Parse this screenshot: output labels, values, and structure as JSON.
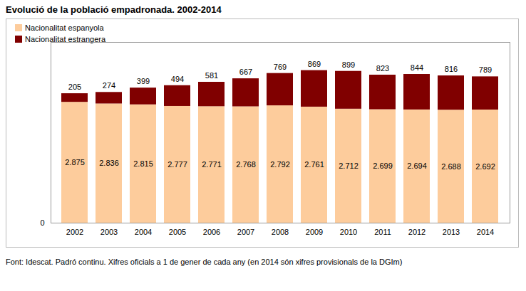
{
  "chart_data": {
    "type": "bar",
    "title": "Evolució de la població empadronada. 2002-2014",
    "caption": "Font: Idescat. Padró continu. Xifres oficials a 1 de gener de cada any (en 2014 són xifres provisionals de la DGIm)",
    "categories": [
      "2002",
      "2003",
      "2004",
      "2005",
      "2006",
      "2007",
      "2008",
      "2009",
      "2010",
      "2011",
      "2012",
      "2013",
      "2014"
    ],
    "series": [
      {
        "name": "Nacionalitat espanyola",
        "color": "#fdcc9c",
        "values": [
          2875,
          2836,
          2815,
          2777,
          2771,
          2768,
          2792,
          2761,
          2712,
          2699,
          2694,
          2688,
          2692
        ],
        "value_labels": [
          "2.875",
          "2.836",
          "2.815",
          "2.777",
          "2.771",
          "2.768",
          "2.792",
          "2.761",
          "2.712",
          "2.699",
          "2.694",
          "2.688",
          "2.692"
        ]
      },
      {
        "name": "Nacionalitat estrangera",
        "color": "#800000",
        "values": [
          205,
          274,
          399,
          494,
          581,
          667,
          769,
          869,
          899,
          823,
          844,
          816,
          789
        ]
      }
    ],
    "ylim": [
      0,
      4300
    ],
    "yticks": [
      0
    ],
    "stacked": true,
    "data_labels": true,
    "legend": "top-left",
    "grid": false
  }
}
